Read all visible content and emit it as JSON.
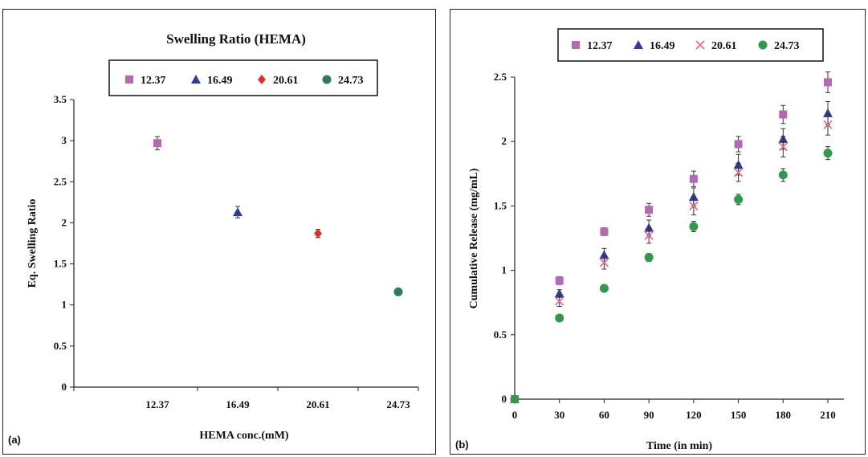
{
  "chart_data": [
    {
      "type": "scatter",
      "panel_label": "(a)",
      "title": "Swelling Ratio (HEMA)",
      "xlabel": "HEMA conc.(mM)",
      "ylabel": "Eq. Swelling Ratio",
      "categories": [
        "12.37",
        "16.49",
        "20.61",
        "24.73"
      ],
      "ylim": [
        0,
        3.5
      ],
      "yticks": [
        "0",
        "0.5",
        "1",
        "1.5",
        "2",
        "2.5",
        "3",
        "3.5"
      ],
      "legend_position": "top",
      "series": [
        {
          "name": "12.37",
          "marker": "square",
          "color": "#b569b4",
          "x_index": 0,
          "value": 2.97,
          "error": 0.08
        },
        {
          "name": "16.49",
          "marker": "triangle",
          "color": "#2f3d99",
          "x_index": 1,
          "value": 2.13,
          "error": 0.07
        },
        {
          "name": "20.61",
          "marker": "diamond",
          "color": "#d9322e",
          "x_index": 2,
          "value": 1.87,
          "error": 0.05
        },
        {
          "name": "24.73",
          "marker": "circle",
          "color": "#2f7a5e",
          "x_index": 3,
          "value": 1.16,
          "error": 0.03
        }
      ]
    },
    {
      "type": "scatter",
      "panel_label": "(b)",
      "title": "",
      "xlabel": "Time (in min)",
      "ylabel": "Cumulative Release (mg/mL)",
      "x": [
        0,
        30,
        60,
        90,
        120,
        150,
        180,
        210
      ],
      "xlim": [
        0,
        210
      ],
      "xticks": [
        "0",
        "30",
        "60",
        "90",
        "120",
        "150",
        "180",
        "210"
      ],
      "ylim": [
        0,
        2.5
      ],
      "yticks": [
        "0",
        "0.5",
        "1",
        "1.5",
        "2",
        "2.5"
      ],
      "legend_position": "top",
      "series": [
        {
          "name": "12.37",
          "marker": "square",
          "color": "#b569b4",
          "values": [
            0,
            0.92,
            1.3,
            1.47,
            1.71,
            1.98,
            2.21,
            2.46
          ],
          "errors": [
            0,
            0.03,
            0.03,
            0.05,
            0.06,
            0.06,
            0.07,
            0.08
          ]
        },
        {
          "name": "16.49",
          "marker": "triangle",
          "color": "#2f3d99",
          "values": [
            0,
            0.82,
            1.12,
            1.33,
            1.57,
            1.82,
            2.02,
            2.22
          ],
          "errors": [
            0,
            0.03,
            0.05,
            0.06,
            0.07,
            0.08,
            0.08,
            0.09
          ]
        },
        {
          "name": "20.61",
          "marker": "cross",
          "color": "#e07090",
          "values": [
            0,
            0.76,
            1.06,
            1.27,
            1.5,
            1.76,
            1.96,
            2.13
          ],
          "errors": [
            0,
            0.04,
            0.05,
            0.06,
            0.07,
            0.07,
            0.08,
            0.08
          ]
        },
        {
          "name": "24.73",
          "marker": "circle",
          "color": "#2f9a4e",
          "values": [
            0,
            0.63,
            0.86,
            1.1,
            1.34,
            1.55,
            1.74,
            1.91
          ],
          "errors": [
            0,
            0.02,
            0.02,
            0.03,
            0.04,
            0.04,
            0.05,
            0.05
          ]
        }
      ]
    }
  ]
}
